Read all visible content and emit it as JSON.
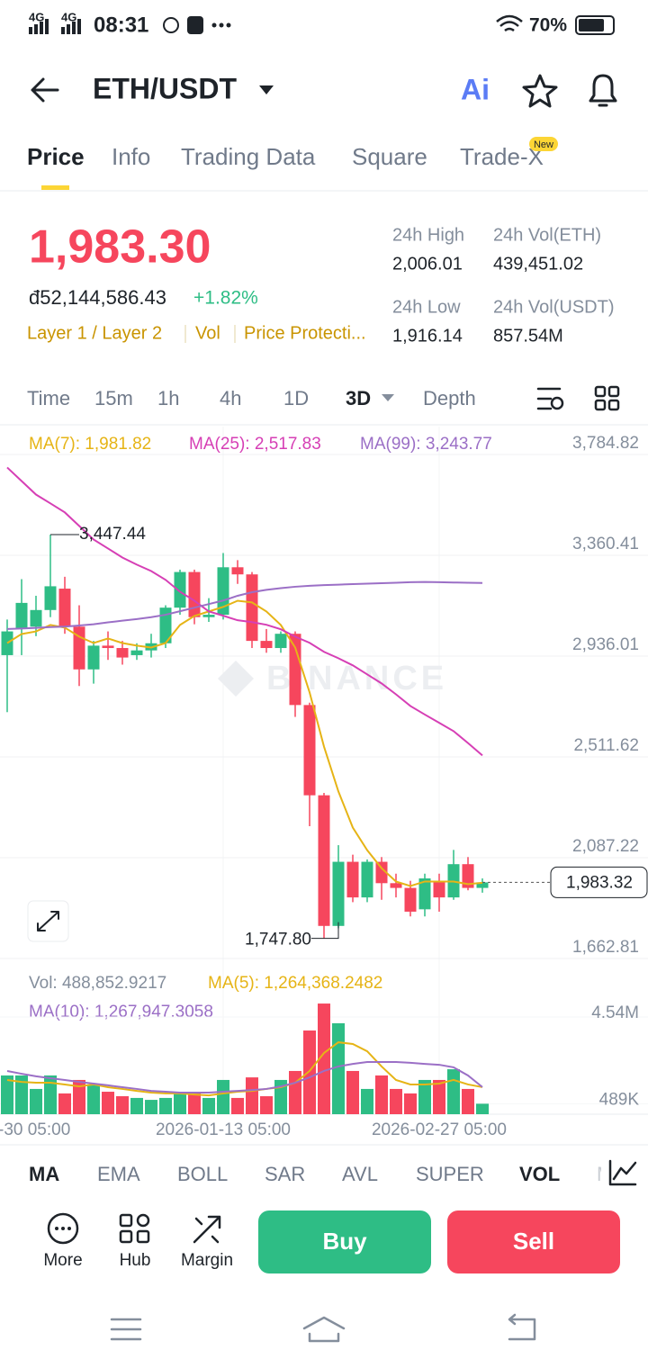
{
  "status_bar": {
    "network": "4G",
    "network2": "4G",
    "time": "08:31",
    "battery": "70%"
  },
  "header": {
    "pair": "ETH/USDT",
    "ai": "Ai"
  },
  "tabs": [
    "Price",
    "Info",
    "Trading Data",
    "Square",
    "Trade-X"
  ],
  "tab_badge": "New",
  "price": {
    "last": "1,983.30",
    "fiat": "đ52,144,586.43",
    "change": "+1.82%",
    "tags": [
      "Layer 1 / Layer 2",
      "Vol",
      "Price Protecti..."
    ]
  },
  "stats": [
    {
      "label": "24h High",
      "value": "2,006.01"
    },
    {
      "label": "24h Vol(ETH)",
      "value": "439,451.02"
    },
    {
      "label": "24h Low",
      "value": "1,916.14"
    },
    {
      "label": "24h Vol(USDT)",
      "value": "857.54M"
    }
  ],
  "timeframes": [
    "Time",
    "15m",
    "1h",
    "4h",
    "1D",
    "3D",
    "Depth"
  ],
  "chart_data": {
    "type": "candlestick",
    "watermark": "BINANCE",
    "up_color": "#2ebd85",
    "down_color": "#f6465d",
    "ylim": [
      1613.6,
      3879.5
    ],
    "yticks": [
      {
        "value": 3784.82,
        "label": "3,784.82"
      },
      {
        "value": 3360.41,
        "label": "3,360.41"
      },
      {
        "value": 2936.01,
        "label": "2,936.01"
      },
      {
        "value": 2511.62,
        "label": "2,511.62"
      },
      {
        "value": 2087.22,
        "label": "2,087.22"
      },
      {
        "value": 1662.81,
        "label": "1,662.81"
      }
    ],
    "open": [
      2940,
      3050,
      3060,
      3130,
      3220,
      3060,
      2880,
      2980,
      2970,
      2940,
      2960,
      2990,
      3140,
      3290,
      3100,
      3110,
      3310,
      3280,
      3000,
      2970,
      3030,
      2730,
      2350,
      1800,
      2070,
      1920,
      2070,
      1980,
      1960,
      1870,
      1990,
      1920,
      2060,
      1960
    ],
    "high": [
      3090,
      3260,
      3190,
      3447.44,
      3270,
      3150,
      3000,
      3040,
      3000,
      2990,
      3030,
      3150,
      3300,
      3300,
      3180,
      3370,
      3340,
      3290,
      3050,
      3040,
      3040,
      2740,
      2360,
      2140,
      2100,
      2080,
      2090,
      2020,
      1990,
      2020,
      2020,
      2120,
      2090,
      2000
    ],
    "low": [
      2700,
      2940,
      3020,
      3100,
      3030,
      2810,
      2820,
      2920,
      2900,
      2920,
      2930,
      2970,
      3110,
      3070,
      3080,
      3090,
      3240,
      2970,
      2950,
      2950,
      2680,
      2220,
      1747.8,
      1790,
      1900,
      1900,
      1910,
      1920,
      1840,
      1840,
      1860,
      1910,
      1950,
      1940
    ],
    "close": [
      3040,
      3160,
      3130,
      3230,
      3060,
      2880,
      2980,
      2970,
      2930,
      2960,
      2990,
      3140,
      3290,
      3100,
      3110,
      3310,
      3280,
      3000,
      2970,
      3030,
      2730,
      2350,
      1800,
      2070,
      1920,
      2070,
      1980,
      1960,
      1860,
      2000,
      1920,
      2060,
      1960,
      1983.3
    ],
    "ma": [
      {
        "label": "MA(7): 1,981.82",
        "color": "#e6b416",
        "values": [
          2991,
          3029,
          3040,
          3067,
          3056,
          3018,
          2991,
          3010,
          2991,
          2980,
          2972,
          2991,
          3067,
          3105,
          3124,
          3143,
          3169,
          3162,
          3124,
          3067,
          2972,
          2783,
          2555,
          2366,
          2214,
          2119,
          2043,
          1987,
          1968,
          1987,
          1987,
          1987,
          1976,
          1981.82
        ]
      },
      {
        "label": "MA(25): 2,517.83",
        "color": "#d63fb5",
        "values": [
          3730,
          3673,
          3616,
          3579,
          3541,
          3484,
          3427,
          3389,
          3351,
          3321,
          3294,
          3257,
          3207,
          3169,
          3124,
          3106,
          3087,
          3079,
          3068,
          3049,
          3018,
          2992,
          2954,
          2927,
          2897,
          2859,
          2821,
          2775,
          2726,
          2690,
          2655,
          2620,
          2570,
          2517.83
        ]
      },
      {
        "label": "MA(99): 3,243.77",
        "color": "#9b6fc6",
        "values": [
          3050,
          3052,
          3055,
          3058,
          3060,
          3065,
          3070,
          3078,
          3085,
          3092,
          3100,
          3110,
          3125,
          3140,
          3155,
          3170,
          3190,
          3205,
          3215,
          3222,
          3228,
          3232,
          3235,
          3237,
          3239,
          3241,
          3243,
          3245,
          3247,
          3248,
          3247,
          3246,
          3245,
          3243.77
        ]
      }
    ],
    "annotations": [
      {
        "value": 3447.44,
        "label": "3,447.44"
      },
      {
        "value": 1747.8,
        "label": "1,747.80"
      }
    ],
    "last_price": {
      "value": 1983.32,
      "label": "1,983.32"
    },
    "volume": {
      "label": "Vol: 488,852.9217",
      "ylim": [
        0,
        6560000
      ],
      "yticks": [
        {
          "value": 4540000,
          "label": "4.54M"
        },
        {
          "value": 489000,
          "label": "489K"
        }
      ],
      "values": [
        1810000,
        1810000,
        1180000,
        1810000,
        970000,
        1600000,
        1390000,
        1050000,
        840000,
        760000,
        670000,
        760000,
        970000,
        1050000,
        760000,
        1600000,
        760000,
        1720000,
        840000,
        1600000,
        2020000,
        3910000,
        5170000,
        4250000,
        2020000,
        1180000,
        1810000,
        1180000,
        970000,
        1600000,
        1600000,
        2100000,
        1180000,
        488852.9217
      ],
      "series": [
        {
          "label": "MA(5): 1,264,368.2482",
          "color": "#e6b416",
          "values": [
            1600000,
            1510000,
            1470000,
            1470000,
            1390000,
            1300000,
            1390000,
            1260000,
            1180000,
            1090000,
            1010000,
            970000,
            970000,
            920000,
            880000,
            970000,
            1050000,
            1090000,
            1180000,
            1260000,
            1470000,
            2020000,
            2860000,
            3360000,
            3280000,
            2940000,
            2230000,
            1600000,
            1390000,
            1390000,
            1430000,
            1600000,
            1390000,
            1264368.2482
          ]
        },
        {
          "label": "MA(10): 1,267,947.3058",
          "color": "#9b6fc6",
          "values": [
            2020000,
            1890000,
            1770000,
            1680000,
            1600000,
            1510000,
            1430000,
            1350000,
            1260000,
            1180000,
            1090000,
            1050000,
            1010000,
            1010000,
            1010000,
            1050000,
            1090000,
            1130000,
            1180000,
            1300000,
            1470000,
            1720000,
            2020000,
            2230000,
            2350000,
            2440000,
            2440000,
            2440000,
            2400000,
            2350000,
            2310000,
            2190000,
            1810000,
            1267947.3058
          ]
        }
      ]
    },
    "x_labels": [
      "-30 05:00",
      "2026-01-13 05:00",
      "2026-02-27 05:00"
    ]
  },
  "indicators": [
    "MA",
    "EMA",
    "BOLL",
    "SAR",
    "AVL",
    "SUPER",
    "VOL",
    "M"
  ],
  "actions": [
    "More",
    "Hub",
    "Margin"
  ],
  "buttons": [
    "Buy",
    "Sell"
  ]
}
